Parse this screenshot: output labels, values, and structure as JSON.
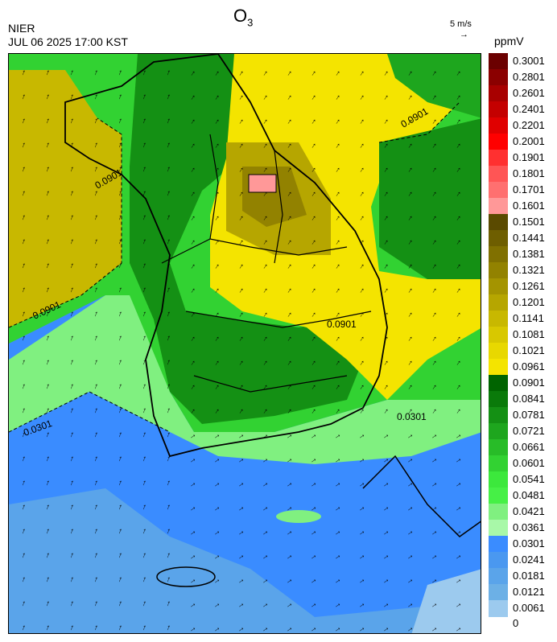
{
  "header": {
    "org": "NIER",
    "timestamp": "JUL 06 2025 17:00 KST",
    "title_main": "O",
    "title_sub": "3",
    "wind_ref_label": "5 m/s",
    "wind_ref_arrow": "→",
    "unit": "ppmV"
  },
  "legend": {
    "labels": [
      "0.3001",
      "0.2801",
      "0.2601",
      "0.2401",
      "0.2201",
      "0.2001",
      "0.1901",
      "0.1801",
      "0.1701",
      "0.1601",
      "0.1501",
      "0.1441",
      "0.1381",
      "0.1321",
      "0.1261",
      "0.1201",
      "0.1141",
      "0.1081",
      "0.1021",
      "0.0961",
      "0.0901",
      "0.0841",
      "0.0781",
      "0.0721",
      "0.0661",
      "0.0601",
      "0.0541",
      "0.0481",
      "0.0421",
      "0.0361",
      "0.0301",
      "0.0241",
      "0.0181",
      "0.0121",
      "0.0061",
      "0"
    ],
    "colors": [
      "#6b0000",
      "#8b0000",
      "#a80000",
      "#c40000",
      "#e00000",
      "#ff0000",
      "#ff3030",
      "#ff5555",
      "#ff7070",
      "#ff9898",
      "#5a4a00",
      "#6e5e00",
      "#807000",
      "#928200",
      "#a49400",
      "#b6a600",
      "#c8b800",
      "#d8c800",
      "#e8d800",
      "#f4e400",
      "#006400",
      "#0a7a0a",
      "#149014",
      "#1ea61e",
      "#28bc28",
      "#32d232",
      "#3ce83c",
      "#46f046",
      "#80f080",
      "#a8f8a8",
      "#3a8cff",
      "#4a98f0",
      "#5aa4ea",
      "#6cb0e6",
      "#9ccaee"
    ]
  },
  "map": {
    "contour_label": "0.0901",
    "contour_label_lower": "0.0301",
    "wind_arrow_glyph": "↑"
  }
}
